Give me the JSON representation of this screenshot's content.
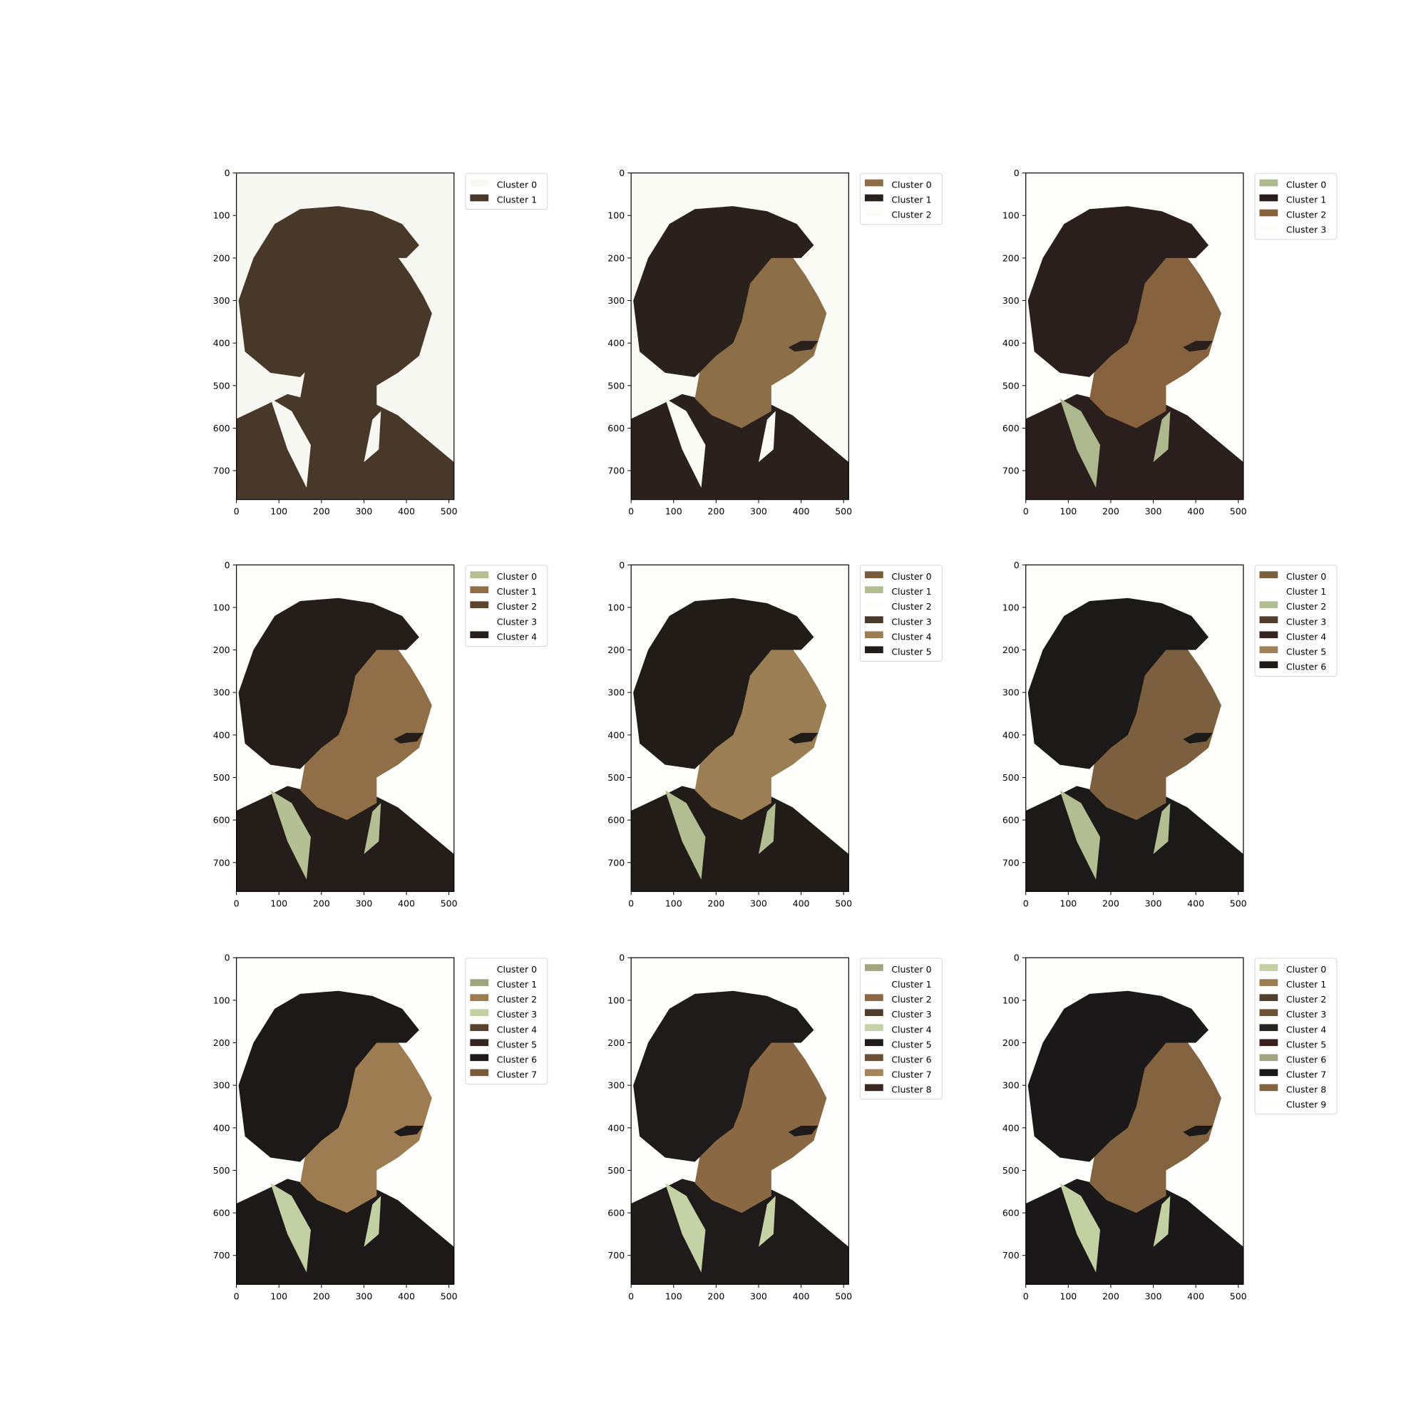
{
  "chart_data": [
    {
      "type": "image",
      "xlim": [
        0,
        512
      ],
      "ylim": [
        768,
        0
      ],
      "x_ticks": [
        0,
        100,
        200,
        300,
        400,
        500
      ],
      "y_ticks": [
        0,
        100,
        200,
        300,
        400,
        500,
        600,
        700
      ],
      "legend_position": "upper-right-outside",
      "legend": [
        {
          "label": "Cluster 0",
          "color": "#f8f8f2"
        },
        {
          "label": "Cluster 1",
          "color": "#48382a"
        }
      ]
    },
    {
      "type": "image",
      "xlim": [
        0,
        512
      ],
      "ylim": [
        768,
        0
      ],
      "x_ticks": [
        0,
        100,
        200,
        300,
        400,
        500
      ],
      "y_ticks": [
        0,
        100,
        200,
        300,
        400,
        500,
        600,
        700
      ],
      "legend_position": "upper-right-outside",
      "legend": [
        {
          "label": "Cluster 0",
          "color": "#8c6e48"
        },
        {
          "label": "Cluster 1",
          "color": "#2a211c"
        },
        {
          "label": "Cluster 2",
          "color": "#fbfbf6"
        }
      ]
    },
    {
      "type": "image",
      "xlim": [
        0,
        512
      ],
      "ylim": [
        768,
        0
      ],
      "x_ticks": [
        0,
        100,
        200,
        300,
        400,
        500
      ],
      "y_ticks": [
        0,
        100,
        200,
        300,
        400,
        500,
        600,
        700
      ],
      "legend_position": "upper-right-outside",
      "legend": [
        {
          "label": "Cluster 0",
          "color": "#aeb88f"
        },
        {
          "label": "Cluster 1",
          "color": "#2a1f1c"
        },
        {
          "label": "Cluster 2",
          "color": "#86623e"
        },
        {
          "label": "Cluster 3",
          "color": "#fdfdfa"
        }
      ]
    },
    {
      "type": "image",
      "xlim": [
        0,
        512
      ],
      "ylim": [
        768,
        0
      ],
      "x_ticks": [
        0,
        100,
        200,
        300,
        400,
        500
      ],
      "y_ticks": [
        0,
        100,
        200,
        300,
        400,
        500,
        600,
        700
      ],
      "legend_position": "upper-right-outside",
      "legend": [
        {
          "label": "Cluster 0",
          "color": "#b4bf93"
        },
        {
          "label": "Cluster 1",
          "color": "#906e48"
        },
        {
          "label": "Cluster 2",
          "color": "#5c4530"
        },
        {
          "label": "Cluster 3",
          "color": "#fdfdf9"
        },
        {
          "label": "Cluster 4",
          "color": "#241d1a"
        }
      ]
    },
    {
      "type": "image",
      "xlim": [
        0,
        512
      ],
      "ylim": [
        768,
        0
      ],
      "x_ticks": [
        0,
        100,
        200,
        300,
        400,
        500
      ],
      "y_ticks": [
        0,
        100,
        200,
        300,
        400,
        500,
        600,
        700
      ],
      "legend_position": "upper-right-outside",
      "legend": [
        {
          "label": "Cluster 0",
          "color": "#7a5c3c"
        },
        {
          "label": "Cluster 1",
          "color": "#b2be92"
        },
        {
          "label": "Cluster 2",
          "color": "#fdfdfa"
        },
        {
          "label": "Cluster 3",
          "color": "#4a382a"
        },
        {
          "label": "Cluster 4",
          "color": "#9c7e54"
        },
        {
          "label": "Cluster 5",
          "color": "#221c19"
        }
      ]
    },
    {
      "type": "image",
      "xlim": [
        0,
        512
      ],
      "ylim": [
        768,
        0
      ],
      "x_ticks": [
        0,
        100,
        200,
        300,
        400,
        500
      ],
      "y_ticks": [
        0,
        100,
        200,
        300,
        400,
        500,
        600,
        700
      ],
      "legend_position": "upper-right-outside",
      "legend": [
        {
          "label": "Cluster 0",
          "color": "#7c5f3e"
        },
        {
          "label": "Cluster 1",
          "color": "#fdfdfa"
        },
        {
          "label": "Cluster 2",
          "color": "#b2be92"
        },
        {
          "label": "Cluster 3",
          "color": "#523e2c"
        },
        {
          "label": "Cluster 4",
          "color": "#352520"
        },
        {
          "label": "Cluster 5",
          "color": "#a0825a"
        },
        {
          "label": "Cluster 6",
          "color": "#1c1a18"
        }
      ]
    },
    {
      "type": "image",
      "xlim": [
        0,
        512
      ],
      "ylim": [
        768,
        0
      ],
      "x_ticks": [
        0,
        100,
        200,
        300,
        400,
        500
      ],
      "y_ticks": [
        0,
        100,
        200,
        300,
        400,
        500,
        600,
        700
      ],
      "legend_position": "upper-right-outside",
      "legend": [
        {
          "label": "Cluster 0",
          "color": "#fefefc"
        },
        {
          "label": "Cluster 1",
          "color": "#a0a47e"
        },
        {
          "label": "Cluster 2",
          "color": "#9e7c52"
        },
        {
          "label": "Cluster 3",
          "color": "#c2d0a4"
        },
        {
          "label": "Cluster 4",
          "color": "#56422e"
        },
        {
          "label": "Cluster 5",
          "color": "#33241f"
        },
        {
          "label": "Cluster 6",
          "color": "#1c1918"
        },
        {
          "label": "Cluster 7",
          "color": "#7a5c3c"
        }
      ]
    },
    {
      "type": "image",
      "xlim": [
        0,
        512
      ],
      "ylim": [
        768,
        0
      ],
      "x_ticks": [
        0,
        100,
        200,
        300,
        400,
        500
      ],
      "y_ticks": [
        0,
        100,
        200,
        300,
        400,
        500,
        600,
        700
      ],
      "legend_position": "upper-right-outside",
      "legend": [
        {
          "label": "Cluster 0",
          "color": "#a2a67e"
        },
        {
          "label": "Cluster 1",
          "color": "#fefefc"
        },
        {
          "label": "Cluster 2",
          "color": "#8a6844"
        },
        {
          "label": "Cluster 3",
          "color": "#4e3c2c"
        },
        {
          "label": "Cluster 4",
          "color": "#c4d2a6"
        },
        {
          "label": "Cluster 5",
          "color": "#1e1b1a"
        },
        {
          "label": "Cluster 6",
          "color": "#6a5034"
        },
        {
          "label": "Cluster 7",
          "color": "#a4845a"
        },
        {
          "label": "Cluster 8",
          "color": "#3a2822"
        }
      ]
    },
    {
      "type": "image",
      "xlim": [
        0,
        512
      ],
      "ylim": [
        768,
        0
      ],
      "x_ticks": [
        0,
        100,
        200,
        300,
        400,
        500
      ],
      "y_ticks": [
        0,
        100,
        200,
        300,
        400,
        500,
        600,
        700
      ],
      "legend_position": "upper-right-outside",
      "legend": [
        {
          "label": "Cluster 0",
          "color": "#c2d0a2"
        },
        {
          "label": "Cluster 1",
          "color": "#9e7c52"
        },
        {
          "label": "Cluster 2",
          "color": "#52402e"
        },
        {
          "label": "Cluster 3",
          "color": "#6e5236"
        },
        {
          "label": "Cluster 4",
          "color": "#232520"
        },
        {
          "label": "Cluster 5",
          "color": "#3a201c"
        },
        {
          "label": "Cluster 6",
          "color": "#a2a680"
        },
        {
          "label": "Cluster 7",
          "color": "#1a1818"
        },
        {
          "label": "Cluster 8",
          "color": "#846440"
        },
        {
          "label": "Cluster 9",
          "color": "#fefefc"
        }
      ]
    }
  ]
}
